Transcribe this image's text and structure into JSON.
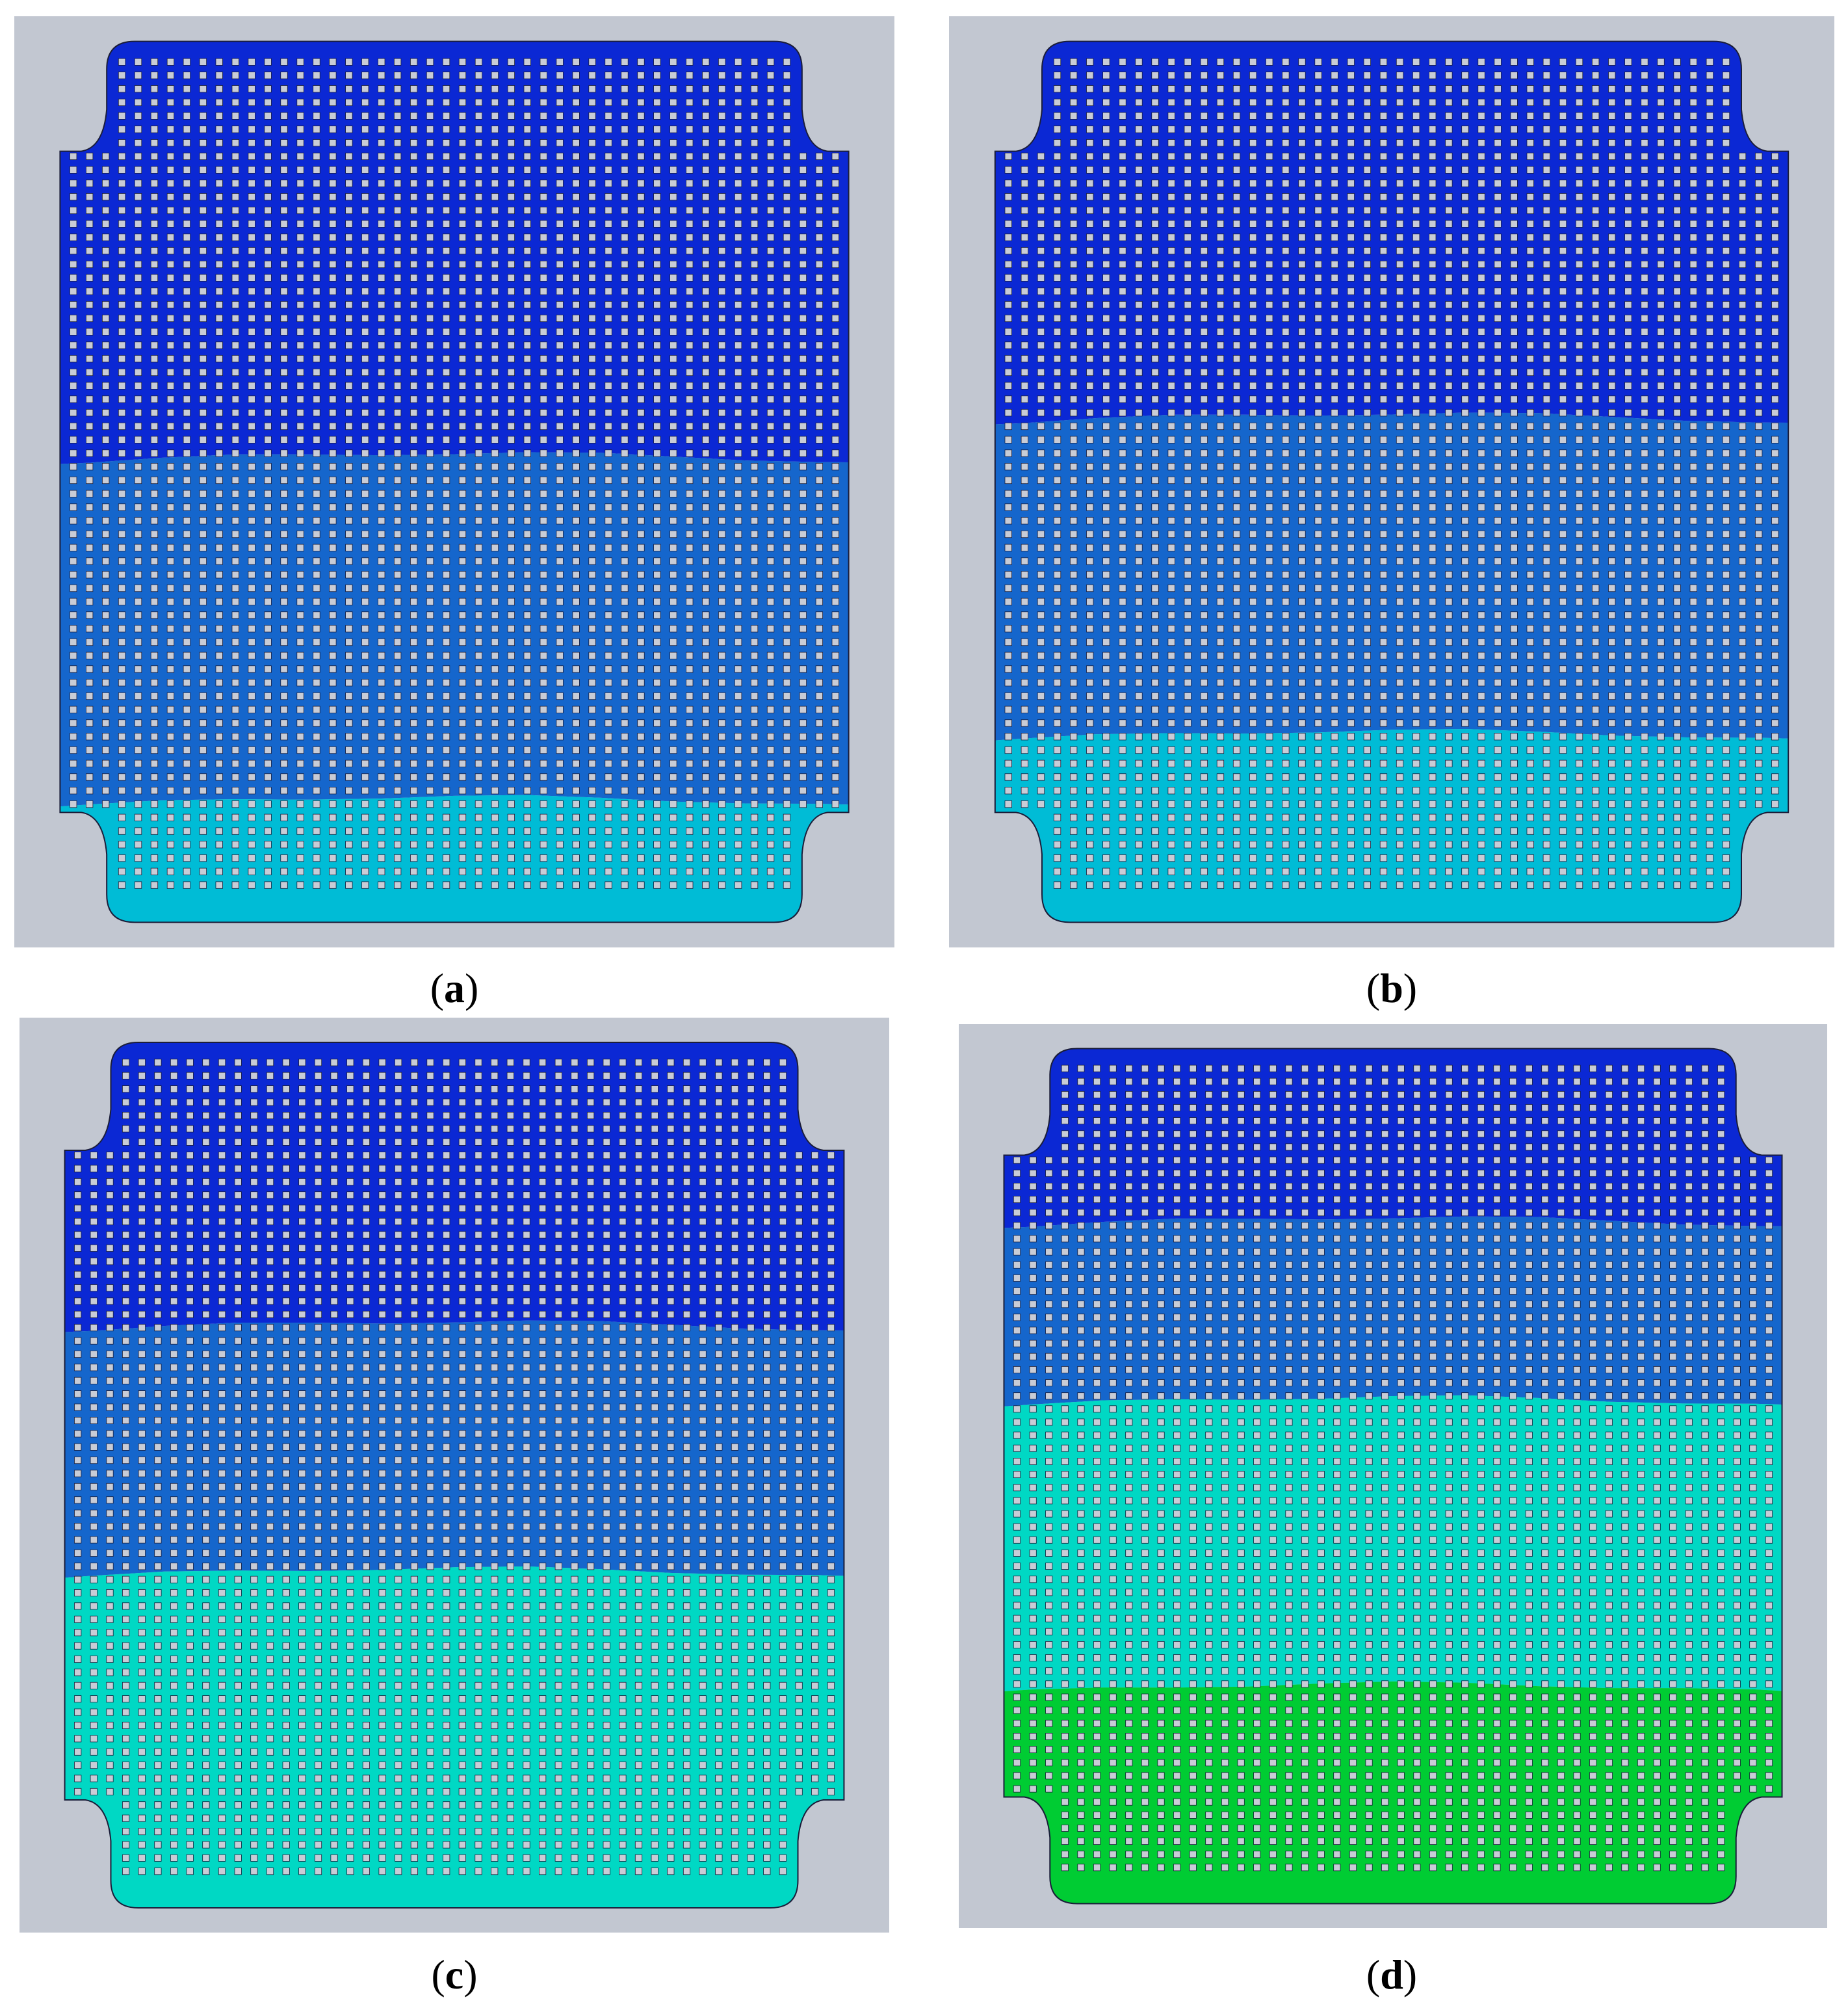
{
  "colors": {
    "background": "#c2c7d1",
    "outline": "#1b1e3a",
    "pin": "#c8ccd6",
    "band_1": "#0b28d4",
    "band_2": "#1566cc",
    "band_3": "#00bcd6",
    "band_4": "#00d8c4",
    "band_5": "#00cc33"
  },
  "panels": [
    {
      "id": "a",
      "label_open": "(",
      "label_letter": "a",
      "label_close": ")",
      "bands": [
        {
          "color": "band_1",
          "from": 0.0,
          "to": 0.48
        },
        {
          "color": "band_2",
          "from": 0.48,
          "to": 0.87
        },
        {
          "color": "band_3",
          "from": 0.87,
          "to": 1.0
        }
      ]
    },
    {
      "id": "b",
      "label_open": "(",
      "label_letter": "b",
      "label_close": ")",
      "bands": [
        {
          "color": "band_1",
          "from": 0.0,
          "to": 0.435
        },
        {
          "color": "band_2",
          "from": 0.435,
          "to": 0.795
        },
        {
          "color": "band_3",
          "from": 0.795,
          "to": 1.0
        }
      ]
    },
    {
      "id": "c",
      "label_open": "(",
      "label_letter": "c",
      "label_close": ")",
      "bands": [
        {
          "color": "band_1",
          "from": 0.0,
          "to": 0.335
        },
        {
          "color": "band_2",
          "from": 0.335,
          "to": 0.62
        },
        {
          "color": "band_4",
          "from": 0.62,
          "to": 1.0
        }
      ]
    },
    {
      "id": "d",
      "label_open": "(",
      "label_letter": "d",
      "label_close": ")",
      "bands": [
        {
          "color": "band_1",
          "from": 0.0,
          "to": 0.21
        },
        {
          "color": "band_2",
          "from": 0.21,
          "to": 0.42
        },
        {
          "color": "band_4",
          "from": 0.42,
          "to": 0.755
        },
        {
          "color": "band_5",
          "from": 0.755,
          "to": 1.0
        }
      ]
    }
  ]
}
